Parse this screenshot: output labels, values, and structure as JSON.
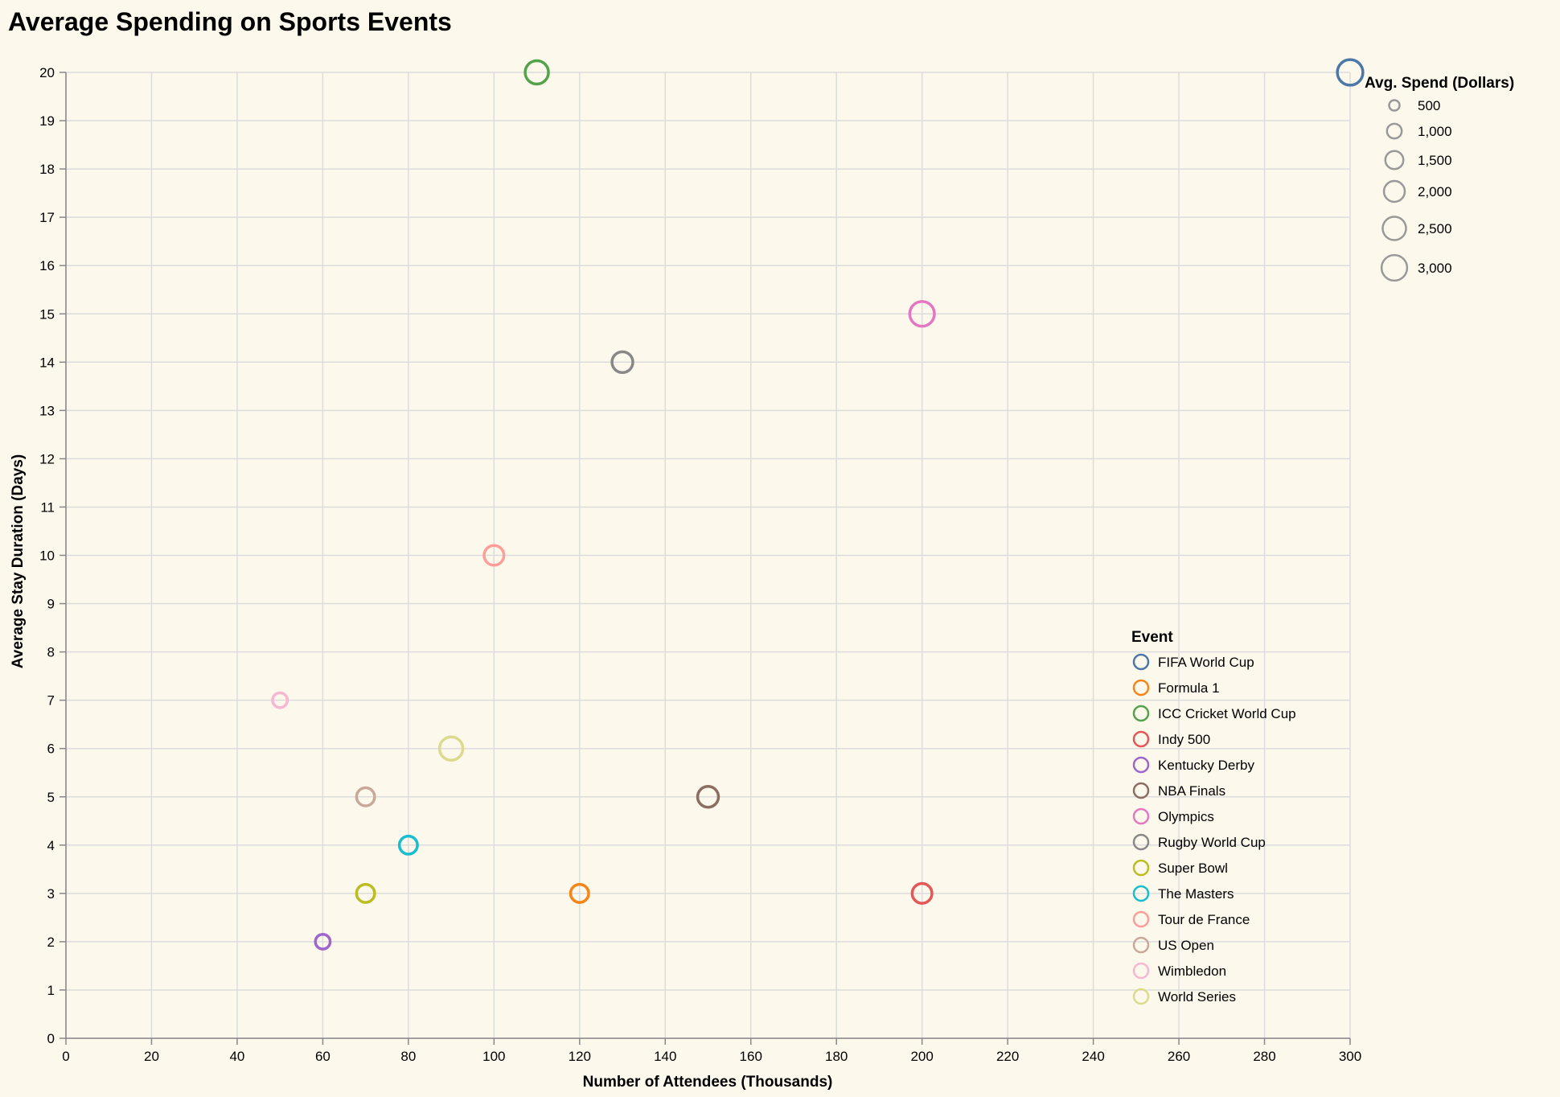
{
  "chart_data": {
    "type": "scatter",
    "title": "Average Spending on Sports Events",
    "xlabel": "Number of Attendees (Thousands)",
    "ylabel": "Average Stay Duration (Days)",
    "xlim": [
      0,
      300
    ],
    "ylim": [
      0,
      20
    ],
    "x_ticks": [
      0,
      20,
      40,
      60,
      80,
      100,
      120,
      140,
      160,
      180,
      200,
      220,
      240,
      260,
      280,
      300
    ],
    "y_ticks": [
      0,
      1,
      2,
      3,
      4,
      5,
      6,
      7,
      8,
      9,
      10,
      11,
      12,
      13,
      14,
      15,
      16,
      17,
      18,
      19,
      20
    ],
    "grid": true,
    "size_legend": {
      "title": "Avg. Spend (Dollars)",
      "values": [
        500,
        1000,
        1500,
        2000,
        2500,
        3000
      ],
      "labels": [
        "500",
        "1,000",
        "1,500",
        "2,000",
        "2,500",
        "3,000"
      ]
    },
    "color_legend": {
      "title": "Event",
      "placement": "bottom-right"
    },
    "series": [
      {
        "name": "FIFA World Cup",
        "x": 300,
        "y": 20,
        "spend": 3000,
        "color": "#4c78a8"
      },
      {
        "name": "Formula 1",
        "x": 120,
        "y": 3,
        "spend": 1500,
        "color": "#f58518"
      },
      {
        "name": "ICC Cricket World Cup",
        "x": 110,
        "y": 20,
        "spend": 2500,
        "color": "#54a24b"
      },
      {
        "name": "Indy 500",
        "x": 200,
        "y": 3,
        "spend": 1800,
        "color": "#e45756"
      },
      {
        "name": "Kentucky Derby",
        "x": 60,
        "y": 2,
        "spend": 1000,
        "color": "#9e66cc"
      },
      {
        "name": "NBA Finals",
        "x": 150,
        "y": 5,
        "spend": 2000,
        "color": "#8c6d62"
      },
      {
        "name": "Olympics",
        "x": 200,
        "y": 15,
        "spend": 2800,
        "color": "#e377c2"
      },
      {
        "name": "Rugby World Cup",
        "x": 130,
        "y": 14,
        "spend": 2000,
        "color": "#888888"
      },
      {
        "name": "Super Bowl",
        "x": 70,
        "y": 3,
        "spend": 1500,
        "color": "#bcbd22"
      },
      {
        "name": "The Masters",
        "x": 80,
        "y": 4,
        "spend": 1500,
        "color": "#17becf"
      },
      {
        "name": "Tour de France",
        "x": 100,
        "y": 10,
        "spend": 1800,
        "color": "#ff9d98"
      },
      {
        "name": "US Open",
        "x": 70,
        "y": 5,
        "spend": 1500,
        "color": "#c9a89a"
      },
      {
        "name": "Wimbledon",
        "x": 50,
        "y": 7,
        "spend": 1000,
        "color": "#f7b6d2"
      },
      {
        "name": "World Series",
        "x": 90,
        "y": 6,
        "spend": 2500,
        "color": "#dbdb8d"
      }
    ]
  }
}
